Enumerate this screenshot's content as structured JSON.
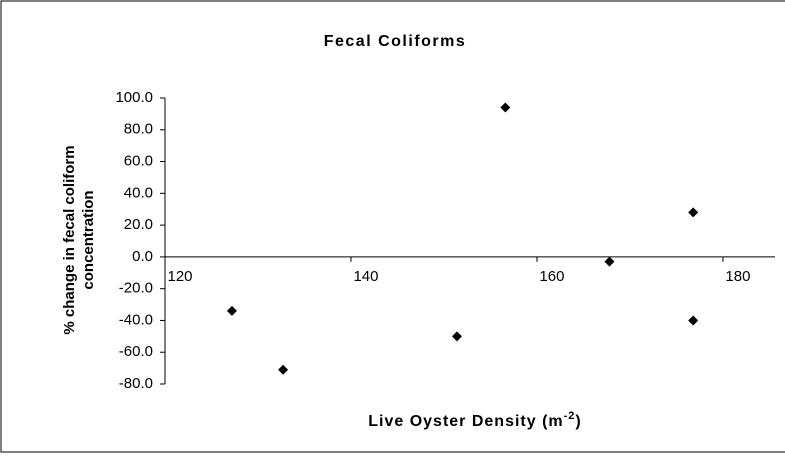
{
  "chart_data": {
    "type": "scatter",
    "title": "Fecal Coliforms",
    "xlabel": "Live Oyster Density (m",
    "xlabel_sup": "-2",
    "xlabel_end": ")",
    "ylabel": [
      "% change in fecal coliform",
      "concentration"
    ],
    "series": [
      {
        "name": "Fecal Coliforms",
        "color": "#000000",
        "x": [
          127.2,
          132.7,
          151.4,
          156.6,
          167.8,
          176.8,
          176.8
        ],
        "values": [
          -34,
          -71,
          -50,
          94,
          -3,
          28,
          -40
        ]
      }
    ],
    "xlim": [
      120,
      185.6
    ],
    "xticks": [
      120,
      140,
      160,
      180
    ],
    "ylim": [
      -80,
      100
    ],
    "yticks": [
      {
        "value": -80,
        "label": "-80.0"
      },
      {
        "value": -60,
        "label": "-60.0"
      },
      {
        "value": -40,
        "label": "-40.0"
      },
      {
        "value": -20,
        "label": "-20.0"
      },
      {
        "value": 0,
        "label": "0.0"
      },
      {
        "value": 20,
        "label": "20.0"
      },
      {
        "value": 40,
        "label": "40.0"
      },
      {
        "value": 60,
        "label": "60.0"
      },
      {
        "value": 80,
        "label": "80.0"
      },
      {
        "value": 100,
        "label": "100.0"
      }
    ]
  }
}
